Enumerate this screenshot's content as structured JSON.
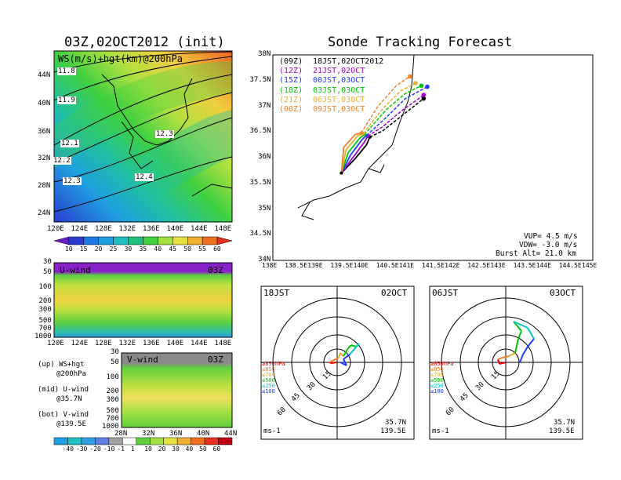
{
  "left_title": "03Z,02OCT2012 (init)",
  "right_title": "Sonde Tracking Forecast",
  "map_panel": {
    "label": "WS(m/s)+hgt(km)@200hPa",
    "lat_ticks": [
      "44N",
      "40N",
      "36N",
      "32N",
      "28N",
      "24N"
    ],
    "lon_ticks": [
      "120E",
      "124E",
      "128E",
      "132E",
      "136E",
      "140E",
      "144E",
      "148E"
    ],
    "contours": [
      "11.8",
      "11.9",
      "12.1",
      "12.2",
      "12.3",
      "12.3",
      "12.4"
    ]
  },
  "ws_colorbar": [
    "10",
    "15",
    "20",
    "25",
    "30",
    "35",
    "40",
    "45",
    "50",
    "55",
    "60"
  ],
  "u_panel": {
    "label": "U-wind",
    "time": "03Z",
    "p_ticks": [
      "30",
      "50",
      "100",
      "200",
      "300",
      "500",
      "700",
      "1000"
    ],
    "lon_ticks": [
      "120E",
      "124E",
      "128E",
      "132E",
      "136E",
      "140E",
      "144E",
      "148E"
    ]
  },
  "v_panel": {
    "label": "V-wind",
    "time": "03Z",
    "p_ticks": [
      "30",
      "50",
      "100",
      "200",
      "300",
      "500",
      "700",
      "1000"
    ],
    "lat_ticks": [
      "28N",
      "32N",
      "36N",
      "40N",
      "44N"
    ]
  },
  "notes": [
    {
      "a": "(up) WS+hgt",
      "b": "@200hPa"
    },
    {
      "a": "(mid) U-wind",
      "b": "@35.7N"
    },
    {
      "a": "(bot) V-wind",
      "b": "@139.5E"
    }
  ],
  "wind_colorbar": [
    "-40",
    "-30",
    "-20",
    "-10",
    "-1",
    "1",
    "10",
    "20",
    "30",
    "40",
    "50",
    "60"
  ],
  "track_map": {
    "lat_ticks": [
      "38N",
      "37.5N",
      "37N",
      "36.5N",
      "36N",
      "35.5N",
      "35N",
      "34.5N",
      "34N"
    ],
    "lon_ticks": [
      "138E",
      "138.5E",
      "139E",
      "139.5E",
      "140E",
      "140.5E",
      "141E",
      "141.5E",
      "142E",
      "142.5E",
      "143E",
      "143.5E",
      "144E",
      "144.5E",
      "145E"
    ],
    "legend": [
      {
        "z": "(09Z)",
        "t": "18JST,02OCT2012",
        "color": "#000000"
      },
      {
        "z": "(12Z)",
        "t": "21JST,02OCT",
        "color": "#a000c8"
      },
      {
        "z": "(15Z)",
        "t": "00JST,03OCT",
        "color": "#1e3cff"
      },
      {
        "z": "(18Z)",
        "t": "03JST,03OCT",
        "color": "#00c800"
      },
      {
        "z": "(21Z)",
        "t": "06JST,03OCT",
        "color": "#e6af2d"
      },
      {
        "z": "(00Z)",
        "t": "09JST,03OCT",
        "color": "#f08228"
      }
    ],
    "info": [
      "VUP= 4.5 m/s",
      "VDW= -3.0 m/s",
      "Burst Alt= 21.0 km"
    ]
  },
  "chart_data": [
    {
      "type": "line",
      "title": "Sonde Tracking Forecast",
      "xlim": [
        138,
        145
      ],
      "ylim": [
        34,
        38
      ],
      "launch": [
        139.5,
        35.7
      ],
      "series": [
        {
          "name": "(09Z) 18JST,02OCT2012",
          "points": [
            [
              139.5,
              35.7
            ],
            [
              139.8,
              35.98
            ],
            [
              140.05,
              36.25
            ],
            [
              140.12,
              36.4
            ],
            [
              140.4,
              36.52
            ],
            [
              140.8,
              36.8
            ],
            [
              141.3,
              37.15
            ]
          ],
          "end": [
            141.3,
            37.15
          ]
        },
        {
          "name": "(12Z) 21JST,02OCT",
          "points": [
            [
              139.5,
              35.7
            ],
            [
              139.75,
              36.0
            ],
            [
              140.0,
              36.3
            ],
            [
              140.08,
              36.42
            ],
            [
              140.4,
              36.6
            ],
            [
              140.8,
              36.9
            ],
            [
              141.3,
              37.22
            ]
          ],
          "end": [
            141.3,
            37.22
          ]
        },
        {
          "name": "(15Z) 00JST,03OCT",
          "points": [
            [
              139.5,
              35.7
            ],
            [
              139.7,
              36.05
            ],
            [
              139.95,
              36.35
            ],
            [
              140.05,
              36.43
            ],
            [
              140.5,
              36.8
            ],
            [
              140.9,
              37.15
            ],
            [
              141.38,
              37.38
            ]
          ],
          "end": [
            141.38,
            37.38
          ]
        },
        {
          "name": "(18Z) 03JST,03OCT",
          "points": [
            [
              139.5,
              35.7
            ],
            [
              139.65,
              36.1
            ],
            [
              139.9,
              36.38
            ],
            [
              140.0,
              36.45
            ],
            [
              140.5,
              36.95
            ],
            [
              140.9,
              37.25
            ],
            [
              141.25,
              37.4
            ]
          ],
          "end": [
            141.25,
            37.4
          ]
        },
        {
          "name": "(21Z) 06JST,03OCT",
          "points": [
            [
              139.5,
              35.7
            ],
            [
              139.6,
              36.15
            ],
            [
              139.85,
              36.42
            ],
            [
              139.98,
              36.47
            ],
            [
              140.4,
              36.95
            ],
            [
              140.8,
              37.3
            ],
            [
              141.12,
              37.45
            ]
          ],
          "end": [
            141.12,
            37.45
          ]
        },
        {
          "name": "(00Z) 09JST,03OCT",
          "points": [
            [
              139.5,
              35.7
            ],
            [
              139.55,
              36.2
            ],
            [
              139.8,
              36.45
            ],
            [
              139.93,
              36.48
            ],
            [
              140.3,
              37.0
            ],
            [
              140.7,
              37.4
            ],
            [
              141.0,
              37.58
            ]
          ],
          "end": [
            141.0,
            37.58
          ]
        }
      ]
    }
  ],
  "hodo_left": {
    "time": "18JST",
    "date": "02OCT",
    "pos": [
      "35.7N",
      "139.5E"
    ],
    "unit": "ms-1",
    "rings": [
      "15",
      "30",
      "45",
      "60"
    ]
  },
  "hodo_right": {
    "time": "06JST",
    "date": "03OCT",
    "pos": [
      "35.7N",
      "139.5E"
    ],
    "unit": "ms-1",
    "rings": [
      "15",
      "30",
      "45",
      "60"
    ]
  },
  "hodo_legend": [
    {
      "label": "≥850hPa",
      "color": "#e60000"
    },
    {
      "label": "≤850",
      "color": "#f08228"
    },
    {
      "label": "≤700",
      "color": "#e6af2d"
    },
    {
      "label": "≤500",
      "color": "#00c800"
    },
    {
      "label": "≤250",
      "color": "#00c8c8"
    },
    {
      "label": "≤100",
      "color": "#1e3cff"
    }
  ]
}
